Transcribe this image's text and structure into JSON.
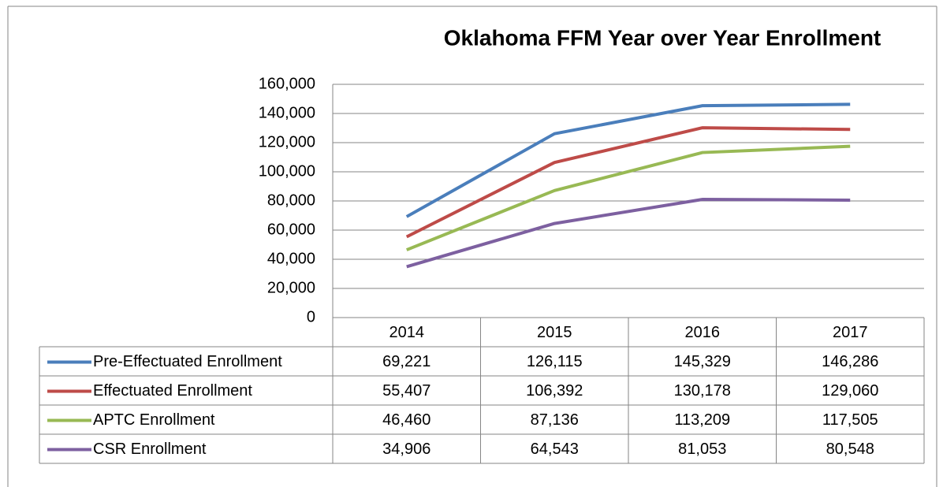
{
  "chart_data": {
    "type": "line",
    "title": "Oklahoma FFM Year over Year Enrollment",
    "categories": [
      "2014",
      "2015",
      "2016",
      "2017"
    ],
    "series": [
      {
        "name": "Pre-Effectuated Enrollment",
        "color": "#4a7ebb",
        "values": [
          69221,
          126115,
          145329,
          146286
        ],
        "value_labels": [
          "69,221",
          "126,115",
          "145,329",
          "146,286"
        ]
      },
      {
        "name": "Effectuated Enrollment",
        "color": "#be4b48",
        "values": [
          55407,
          106392,
          130178,
          129060
        ],
        "value_labels": [
          "55,407",
          "106,392",
          "130,178",
          "129,060"
        ]
      },
      {
        "name": "APTC Enrollment",
        "color": "#98b954",
        "values": [
          46460,
          87136,
          113209,
          117505
        ],
        "value_labels": [
          "46,460",
          "87,136",
          "113,209",
          "117,505"
        ]
      },
      {
        "name": "CSR Enrollment",
        "color": "#7d60a0",
        "values": [
          34906,
          64543,
          81053,
          80548
        ],
        "value_labels": [
          "34,906",
          "64,543",
          "81,053",
          "80,548"
        ]
      }
    ],
    "ylim": [
      0,
      160000
    ],
    "yticks": [
      0,
      {
        "value": 20000,
        "label": "20,000"
      },
      {
        "value": 40000,
        "label": "40,000"
      },
      {
        "value": 60000,
        "label": "60,000"
      },
      {
        "value": 80000,
        "label": "80,000"
      },
      {
        "value": 100000,
        "label": "100,000"
      },
      {
        "value": 120000,
        "label": "120,000"
      },
      {
        "value": 140000,
        "label": "140,000"
      },
      {
        "value": 160000,
        "label": "160,000"
      }
    ],
    "grid": true
  }
}
